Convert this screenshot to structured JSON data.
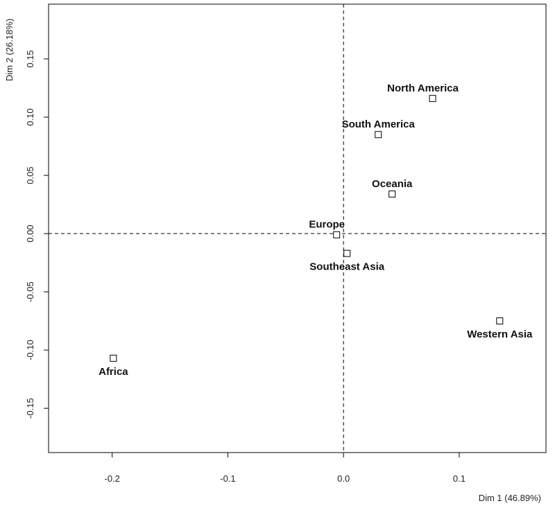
{
  "chart_data": {
    "type": "scatter",
    "title": "",
    "xlabel": "Dim 1 (46.89%)",
    "ylabel": "Dim 2 (26.18%)",
    "xlim": [
      -0.255,
      0.175
    ],
    "ylim": [
      -0.188,
      0.197
    ],
    "x_ticks": [
      -0.2,
      -0.1,
      0.0,
      0.1
    ],
    "x_tick_labels": [
      "-0.2",
      "-0.1",
      "0.0",
      "0.1"
    ],
    "y_ticks": [
      -0.15,
      -0.1,
      -0.05,
      0.0,
      0.05,
      0.1,
      0.15
    ],
    "y_tick_labels": [
      "-0.15",
      "-0.10",
      "-0.05",
      "0.00",
      "0.05",
      "0.10",
      "0.15"
    ],
    "grid": false,
    "reference_lines": {
      "x": 0.0,
      "y": 0.0,
      "style": "dashed"
    },
    "points": [
      {
        "label": "North America",
        "x": 0.077,
        "y": 0.116,
        "label_pos": "above-left"
      },
      {
        "label": "South America",
        "x": 0.03,
        "y": 0.085,
        "label_pos": "above"
      },
      {
        "label": "Oceania",
        "x": 0.042,
        "y": 0.034,
        "label_pos": "above"
      },
      {
        "label": "Europe",
        "x": -0.006,
        "y": -0.001,
        "label_pos": "above-left"
      },
      {
        "label": "Southeast Asia",
        "x": 0.003,
        "y": -0.017,
        "label_pos": "below"
      },
      {
        "label": "Western Asia",
        "x": 0.135,
        "y": -0.075,
        "label_pos": "below"
      },
      {
        "label": "Africa",
        "x": -0.199,
        "y": -0.107,
        "label_pos": "below"
      }
    ]
  }
}
